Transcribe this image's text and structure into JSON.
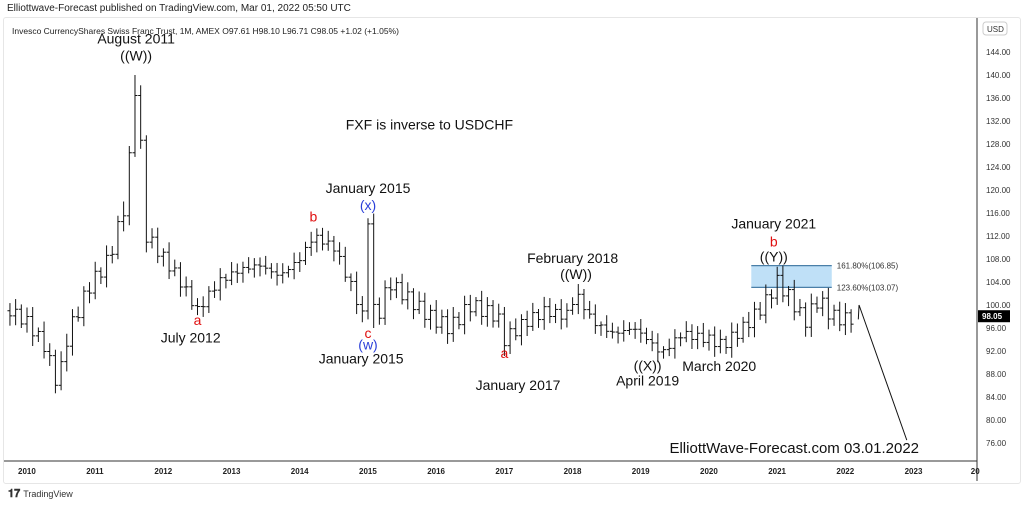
{
  "header": {
    "published": "Elliottwave-Forecast published on TradingView.com, Mar 01, 2022 05:50 UTC",
    "symbol_line": "Invesco CurrencyShares Swiss Franc Trust, 1M, AMEX  O97.61  H98.10  L96.71  C98.05  +1.02 (+1.05%)"
  },
  "footer": {
    "brand": "TradingView"
  },
  "chart_data": {
    "type": "ohlc",
    "currency": "USD",
    "last_price": "98.05",
    "ylim": [
      72,
      147
    ],
    "y_ticks": [
      "144.00",
      "140.00",
      "136.00",
      "132.00",
      "128.00",
      "124.00",
      "120.00",
      "116.00",
      "112.00",
      "108.00",
      "104.00",
      "100.00",
      "96.00",
      "92.00",
      "88.00",
      "84.00",
      "80.00",
      "76.00"
    ],
    "x_ticks": [
      "2010",
      "2011",
      "2012",
      "2013",
      "2014",
      "2015",
      "2016",
      "2017",
      "2018",
      "2019",
      "2020",
      "2021",
      "2022",
      "2023",
      "20"
    ],
    "xlim": [
      2009.75,
      2024.0
    ],
    "path": [
      [
        2009.75,
        99
      ],
      [
        2010.0,
        97
      ],
      [
        2010.25,
        93
      ],
      [
        2010.45,
        86
      ],
      [
        2010.6,
        95
      ],
      [
        2010.9,
        103
      ],
      [
        2011.2,
        108
      ],
      [
        2011.45,
        118
      ],
      [
        2011.6,
        140
      ],
      [
        2011.75,
        112
      ],
      [
        2011.95,
        109
      ],
      [
        2012.2,
        105
      ],
      [
        2012.5,
        99
      ],
      [
        2012.8,
        104
      ],
      [
        2013.1,
        106
      ],
      [
        2013.4,
        107
      ],
      [
        2013.7,
        105
      ],
      [
        2014.0,
        108
      ],
      [
        2014.2,
        112
      ],
      [
        2014.5,
        110
      ],
      [
        2014.8,
        102
      ],
      [
        2014.95,
        97
      ],
      [
        2015.0,
        115
      ],
      [
        2015.1,
        96
      ],
      [
        2015.3,
        104
      ],
      [
        2015.6,
        101
      ],
      [
        2015.9,
        98
      ],
      [
        2016.2,
        96
      ],
      [
        2016.5,
        100
      ],
      [
        2016.9,
        98
      ],
      [
        2017.0,
        94
      ],
      [
        2017.3,
        97
      ],
      [
        2017.6,
        99
      ],
      [
        2017.9,
        98
      ],
      [
        2018.05,
        102
      ],
      [
        2018.3,
        97
      ],
      [
        2018.6,
        95
      ],
      [
        2018.9,
        96
      ],
      [
        2019.1,
        94
      ],
      [
        2019.3,
        91.5
      ],
      [
        2019.6,
        95
      ],
      [
        2020.0,
        94
      ],
      [
        2020.2,
        93
      ],
      [
        2020.5,
        96
      ],
      [
        2020.8,
        100
      ],
      [
        2021.0,
        104
      ],
      [
        2021.2,
        101
      ],
      [
        2021.4,
        97
      ],
      [
        2021.6,
        101
      ],
      [
        2021.8,
        98
      ],
      [
        2022.0,
        97.5
      ],
      [
        2022.16,
        98.05
      ]
    ],
    "projection": [
      [
        2022.2,
        100
      ],
      [
        2022.9,
        76.5
      ]
    ],
    "fib_zone": {
      "upper_label": "161.80%(106.85)",
      "upper": 106.85,
      "lower_label": "123.60%(103.07)",
      "lower": 103.07,
      "start": 2020.62,
      "end": 2021.8
    },
    "annotations": [
      {
        "text": "August 2011",
        "t": 2011.6,
        "p": 145.5,
        "color": "#111",
        "size": 14
      },
      {
        "text": "((W))",
        "t": 2011.6,
        "p": 142.5,
        "color": "#111",
        "size": 14
      },
      {
        "text": "FXF is inverse to USDCHF",
        "t": 2015.9,
        "p": 130.5,
        "color": "#111",
        "size": 14
      },
      {
        "text": "January 2015",
        "t": 2015.0,
        "p": 119.5,
        "color": "#111",
        "size": 14
      },
      {
        "text": "(x)",
        "t": 2015.0,
        "p": 116.5,
        "color": "#2a3fd8",
        "size": 14
      },
      {
        "text": "b",
        "t": 2014.2,
        "p": 114.5,
        "color": "#e01010",
        "size": 14
      },
      {
        "text": "a",
        "t": 2012.5,
        "p": 96.5,
        "color": "#e01010",
        "size": 14
      },
      {
        "text": "July 2012",
        "t": 2012.4,
        "p": 93.5,
        "color": "#111",
        "size": 14
      },
      {
        "text": "c",
        "t": 2015.0,
        "p": 94.3,
        "color": "#e01010",
        "size": 14
      },
      {
        "text": "(w)",
        "t": 2015.0,
        "p": 92.3,
        "color": "#2a3fd8",
        "size": 14
      },
      {
        "text": "January 2015",
        "t": 2014.9,
        "p": 89.8,
        "color": "#111",
        "size": 14
      },
      {
        "text": "February 2018",
        "t": 2018.0,
        "p": 107.3,
        "color": "#111",
        "size": 14
      },
      {
        "text": "((W))",
        "t": 2018.05,
        "p": 104.5,
        "color": "#111",
        "size": 14
      },
      {
        "text": "a",
        "t": 2017.0,
        "p": 90.8,
        "color": "#e01010",
        "size": 14
      },
      {
        "text": "January 2017",
        "t": 2017.2,
        "p": 85.2,
        "color": "#111",
        "size": 14
      },
      {
        "text": "((X))",
        "t": 2019.1,
        "p": 88.6,
        "color": "#111",
        "size": 14
      },
      {
        "text": "April 2019",
        "t": 2019.1,
        "p": 86.0,
        "color": "#111",
        "size": 14
      },
      {
        "text": "March 2020",
        "t": 2020.15,
        "p": 88.5,
        "color": "#111",
        "size": 14
      },
      {
        "text": "January 2021",
        "t": 2020.95,
        "p": 113.3,
        "color": "#111",
        "size": 14
      },
      {
        "text": "b",
        "t": 2020.95,
        "p": 110.2,
        "color": "#e01010",
        "size": 14
      },
      {
        "text": "((Y))",
        "t": 2020.95,
        "p": 107.6,
        "color": "#111",
        "size": 14
      },
      {
        "text": "ElliottWave-Forecast.com 03.01.2022",
        "t": 2021.25,
        "p": 74.3,
        "color": "#111",
        "size": 15
      }
    ]
  }
}
